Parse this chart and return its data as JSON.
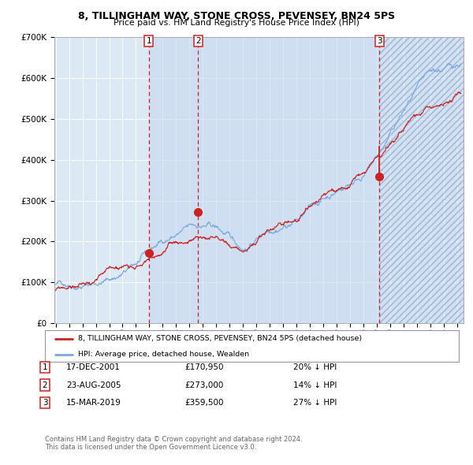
{
  "title": "8, TILLINGHAM WAY, STONE CROSS, PEVENSEY, BN24 5PS",
  "subtitle": "Price paid vs. HM Land Registry's House Price Index (HPI)",
  "legend_label_red": "8, TILLINGHAM WAY, STONE CROSS, PEVENSEY, BN24 5PS (detached house)",
  "legend_label_blue": "HPI: Average price, detached house, Wealden",
  "footer1": "Contains HM Land Registry data © Crown copyright and database right 2024.",
  "footer2": "This data is licensed under the Open Government Licence v3.0.",
  "transactions": [
    {
      "num": 1,
      "date": "17-DEC-2001",
      "price": 170950,
      "pct": "20%",
      "dir": "↓"
    },
    {
      "num": 2,
      "date": "23-AUG-2005",
      "price": 273000,
      "pct": "14%",
      "dir": "↓"
    },
    {
      "num": 3,
      "date": "15-MAR-2019",
      "price": 359500,
      "pct": "27%",
      "dir": "↓"
    }
  ],
  "sale_dates_decimal": [
    2001.96,
    2005.64,
    2019.21
  ],
  "sale_prices": [
    170950,
    273000,
    359500
  ],
  "background_color": "#ffffff",
  "plot_bg_color": "#dde8f5",
  "hpi_color": "#7aaadd",
  "price_color": "#cc2222",
  "vline_color": "#cc2222",
  "ylim": [
    0,
    700000
  ],
  "xlim_start": 1994.9,
  "xlim_end": 2025.5
}
